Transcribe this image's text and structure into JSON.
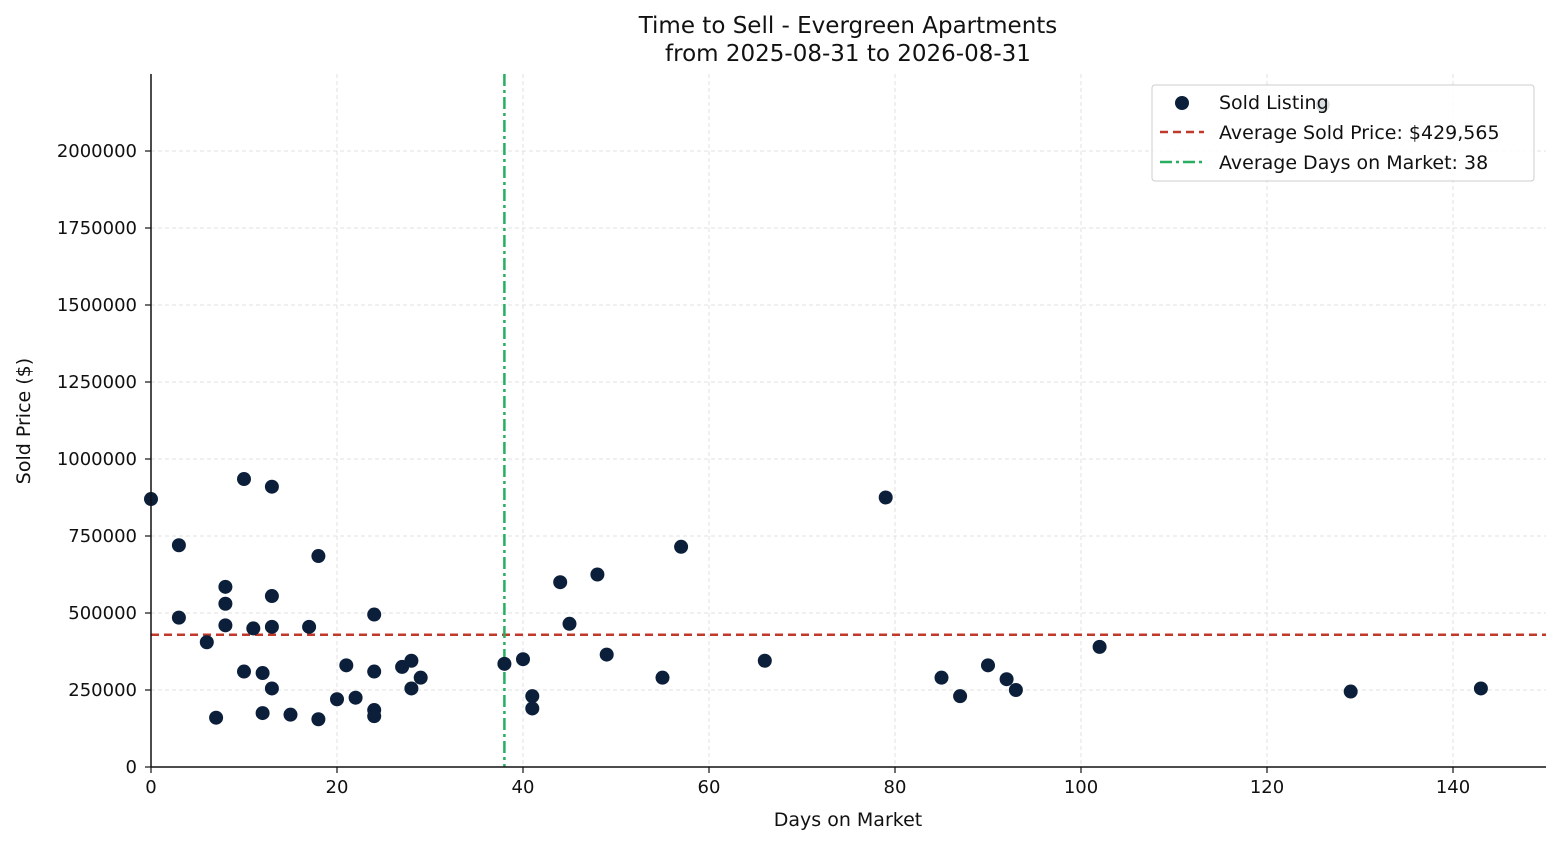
{
  "chart_data": {
    "type": "scatter",
    "title": "Time to Sell - Evergreen Apartments",
    "subtitle": "from 2025-08-31 to 2026-08-31",
    "xlabel": "Days on Market",
    "ylabel": "Sold Price ($)",
    "xlim": [
      0,
      150
    ],
    "ylim": [
      0,
      2250000
    ],
    "x_ticks": [
      0,
      20,
      40,
      60,
      80,
      100,
      120,
      140
    ],
    "y_ticks": [
      0,
      250000,
      500000,
      750000,
      1000000,
      1250000,
      1500000,
      1750000,
      2000000
    ],
    "grid": true,
    "legend_position": "top-right",
    "colors": {
      "points": "#0b1f3a",
      "avg_price": "#c0392b",
      "avg_days": "#27ae60",
      "grid": "#d9d9d9"
    },
    "series": [
      {
        "name": "Sold Listing",
        "points": [
          [
            0,
            870000
          ],
          [
            3,
            720000
          ],
          [
            3,
            485000
          ],
          [
            6,
            405000
          ],
          [
            7,
            160000
          ],
          [
            8,
            585000
          ],
          [
            8,
            530000
          ],
          [
            8,
            460000
          ],
          [
            10,
            935000
          ],
          [
            10,
            310000
          ],
          [
            11,
            450000
          ],
          [
            12,
            305000
          ],
          [
            12,
            175000
          ],
          [
            13,
            910000
          ],
          [
            13,
            555000
          ],
          [
            13,
            455000
          ],
          [
            13,
            255000
          ],
          [
            15,
            170000
          ],
          [
            17,
            455000
          ],
          [
            18,
            685000
          ],
          [
            18,
            155000
          ],
          [
            20,
            220000
          ],
          [
            21,
            330000
          ],
          [
            22,
            225000
          ],
          [
            24,
            495000
          ],
          [
            24,
            310000
          ],
          [
            24,
            185000
          ],
          [
            24,
            165000
          ],
          [
            27,
            325000
          ],
          [
            28,
            345000
          ],
          [
            28,
            255000
          ],
          [
            29,
            290000
          ],
          [
            38,
            335000
          ],
          [
            40,
            350000
          ],
          [
            41,
            230000
          ],
          [
            41,
            190000
          ],
          [
            44,
            600000
          ],
          [
            45,
            465000
          ],
          [
            48,
            625000
          ],
          [
            49,
            365000
          ],
          [
            55,
            290000
          ],
          [
            57,
            715000
          ],
          [
            66,
            345000
          ],
          [
            79,
            875000
          ],
          [
            85,
            290000
          ],
          [
            87,
            230000
          ],
          [
            90,
            330000
          ],
          [
            92,
            285000
          ],
          [
            93,
            250000
          ],
          [
            102,
            390000
          ],
          [
            126,
            2150000
          ],
          [
            129,
            245000
          ],
          [
            143,
            255000
          ]
        ]
      }
    ],
    "reference_lines": [
      {
        "name": "Average Sold Price: $429,565",
        "orientation": "horizontal",
        "value": 429565,
        "style": "dashed"
      },
      {
        "name": "Average Days on Market: 38",
        "orientation": "vertical",
        "value": 38,
        "style": "dashdot"
      }
    ]
  }
}
